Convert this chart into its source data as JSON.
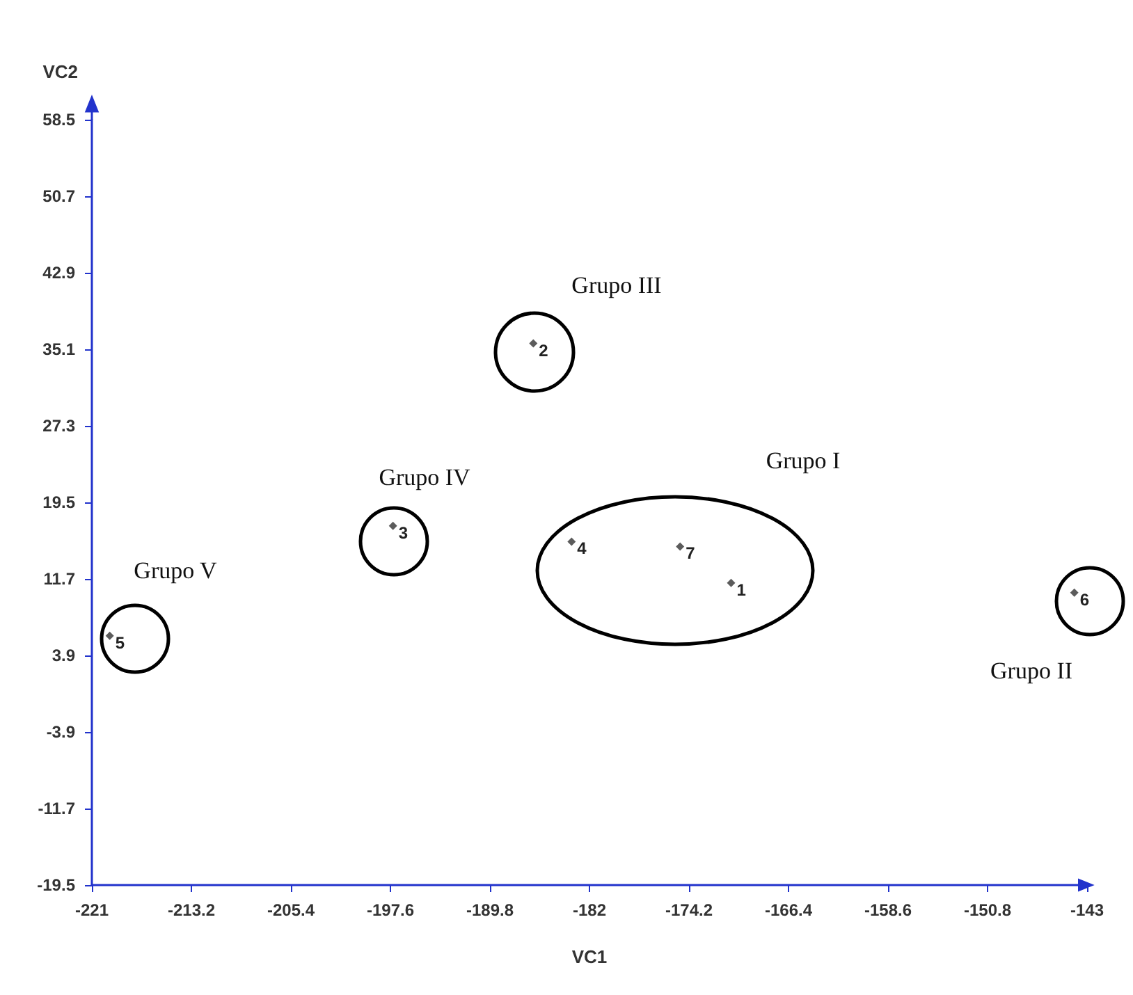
{
  "chart_data": {
    "type": "scatter",
    "xlabel": "VC1",
    "ylabel": "VC2",
    "x": [
      -170.9,
      -186.4,
      -197.4,
      -183.4,
      -219.6,
      -144.0,
      -174.9
    ],
    "values": [
      11.3,
      35.7,
      17.1,
      15.5,
      5.9,
      10.3,
      15.0
    ],
    "color": "#333333",
    "marker": "diamond",
    "grid": false,
    "xlim": [
      -221,
      -143
    ],
    "xticks": [
      -221,
      -213.2,
      -205.4,
      -197.6,
      -189.8,
      -182,
      -174.2,
      -166.4,
      -158.6,
      -150.8,
      -143
    ],
    "ylim": [
      -19.5,
      58.5
    ],
    "yticks": [
      -19.5,
      -11.7,
      -3.9,
      3.9,
      11.7,
      19.5,
      27.3,
      35.1,
      42.9,
      50.7,
      58.5
    ],
    "annotations": [
      {
        "text": "1",
        "x": -170.9,
        "y": 11.3
      },
      {
        "text": "2",
        "x": -186.4,
        "y": 35.7
      },
      {
        "text": "3",
        "x": -197.4,
        "y": 17.1
      },
      {
        "text": "4",
        "x": -183.4,
        "y": 15.5
      },
      {
        "text": "5",
        "x": -219.6,
        "y": 5.9
      },
      {
        "text": "6",
        "x": -144.0,
        "y": 10.3
      },
      {
        "text": "7",
        "x": -174.9,
        "y": 15.0
      },
      "Grupo III",
      "Grupo IV",
      "Grupo I",
      "Grupo V",
      "Grupo II"
    ]
  }
}
